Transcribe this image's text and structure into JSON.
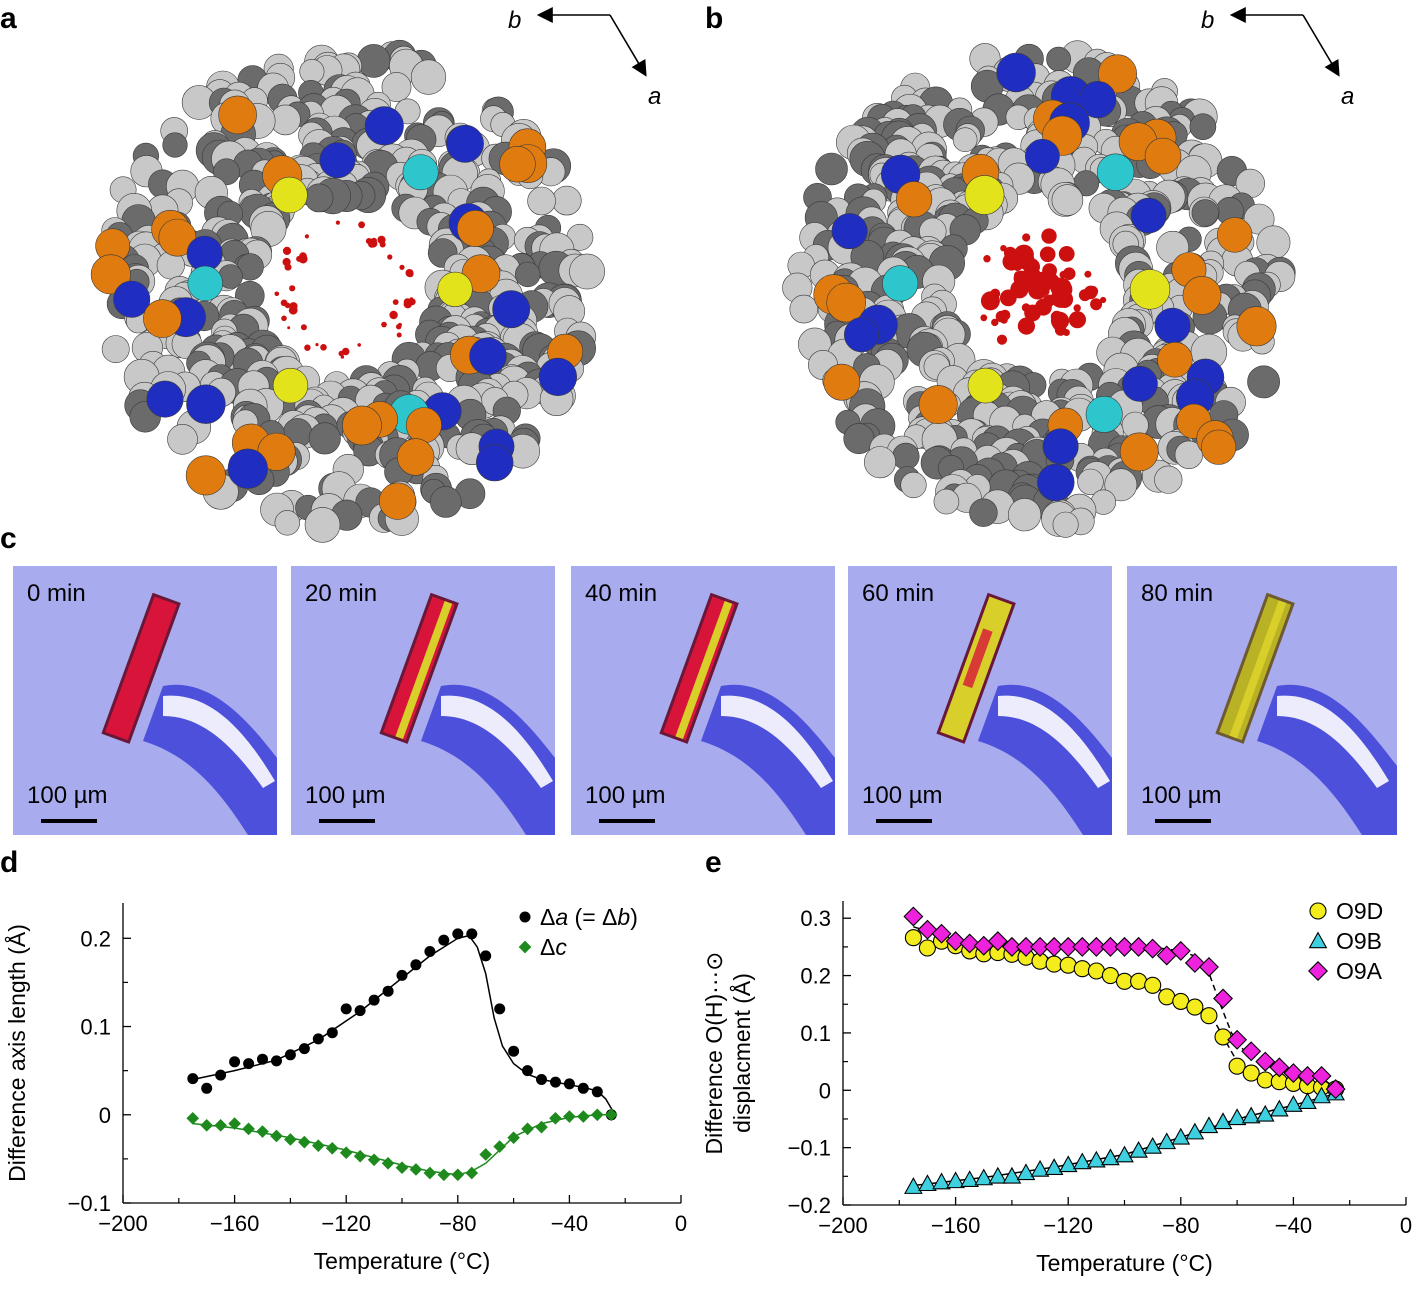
{
  "panels": {
    "a": {
      "label": "a",
      "axis_b": "b",
      "axis_a": "a"
    },
    "b": {
      "label": "b",
      "axis_b": "b",
      "axis_a": "a"
    },
    "c": {
      "label": "c"
    },
    "d": {
      "label": "d"
    },
    "e": {
      "label": "e"
    }
  },
  "photos": [
    {
      "time": "0 min",
      "scale": "100 µm",
      "state": "red"
    },
    {
      "time": "20 min",
      "scale": "100 µm",
      "state": "mixed"
    },
    {
      "time": "40 min",
      "scale": "100 µm",
      "state": "mixed"
    },
    {
      "time": "60 min",
      "scale": "100 µm",
      "state": "mostly-yellow"
    },
    {
      "time": "80 min",
      "scale": "100 µm",
      "state": "yellow"
    }
  ],
  "colors": {
    "atom_carbon": "#6b6b6b",
    "atom_hydrogen": "#c8c8c8",
    "atom_oxygen": "#e07b10",
    "atom_nitrogen": "#1f2ec0",
    "atom_sulfur": "#e3e31c",
    "atom_chlorine": "#2cc6cc",
    "density": "#cc1010",
    "photo_bg": "#a9abef",
    "series_a": "#000000",
    "series_c": "#1e8a1e",
    "o9d": "#f4ec1c",
    "o9b": "#3fd0e0",
    "o9a": "#ee22dd"
  },
  "chart_data": [
    {
      "id": "d",
      "type": "scatter",
      "xlabel": "Temperature (°C)",
      "ylabel": "Difference axis length (Å)",
      "xlim": [
        -200,
        0
      ],
      "ylim": [
        -0.1,
        0.24
      ],
      "xticks": [
        -200,
        -160,
        -120,
        -80,
        -40,
        0
      ],
      "xtick_labels": [
        "−200",
        "−160",
        "−120",
        "−80",
        "−40",
        "0"
      ],
      "yticks": [
        -0.1,
        0,
        0.1,
        0.2
      ],
      "ytick_labels": [
        "−0.1",
        "0",
        "0.1",
        "0.2"
      ],
      "legend_position": "top-right",
      "series": [
        {
          "name": "Δa (= Δb)",
          "legend_var": "a",
          "legend_eq": "(= Δ",
          "legend_var2": "b",
          "legend_close": ")",
          "marker": "circle",
          "color": "#000000",
          "x": [
            -175,
            -170,
            -165,
            -160,
            -155,
            -150,
            -145,
            -140,
            -135,
            -130,
            -125,
            -120,
            -115,
            -110,
            -105,
            -100,
            -95,
            -90,
            -85,
            -80,
            -75,
            -70,
            -65,
            -60,
            -55,
            -50,
            -45,
            -40,
            -35,
            -30,
            -25
          ],
          "y": [
            0.041,
            0.03,
            0.045,
            0.06,
            0.058,
            0.063,
            0.061,
            0.068,
            0.075,
            0.086,
            0.093,
            0.12,
            0.118,
            0.13,
            0.14,
            0.158,
            0.17,
            0.185,
            0.198,
            0.205,
            0.205,
            0.18,
            0.12,
            0.072,
            0.05,
            0.04,
            0.037,
            0.035,
            0.03,
            0.026,
            0.0
          ],
          "fit_x": [
            -175,
            -160,
            -145,
            -130,
            -115,
            -100,
            -90,
            -80,
            -76,
            -73,
            -70,
            -67,
            -64,
            -60,
            -55,
            -50,
            -45,
            -40,
            -35,
            -30,
            -27,
            -24
          ],
          "fit_y": [
            0.04,
            0.05,
            0.062,
            0.085,
            0.117,
            0.155,
            0.18,
            0.2,
            0.203,
            0.19,
            0.16,
            0.11,
            0.078,
            0.058,
            0.046,
            0.04,
            0.037,
            0.034,
            0.031,
            0.027,
            0.018,
            0.002
          ]
        },
        {
          "name": "Δc",
          "legend_var": "c",
          "marker": "diamond",
          "color": "#1e8a1e",
          "x": [
            -175,
            -170,
            -165,
            -160,
            -155,
            -150,
            -145,
            -140,
            -135,
            -130,
            -125,
            -120,
            -115,
            -110,
            -105,
            -100,
            -95,
            -90,
            -85,
            -80,
            -75,
            -70,
            -65,
            -60,
            -55,
            -50,
            -45,
            -40,
            -35,
            -30,
            -25
          ],
          "y": [
            -0.004,
            -0.012,
            -0.012,
            -0.01,
            -0.016,
            -0.019,
            -0.024,
            -0.028,
            -0.031,
            -0.035,
            -0.038,
            -0.043,
            -0.047,
            -0.051,
            -0.055,
            -0.06,
            -0.062,
            -0.066,
            -0.068,
            -0.068,
            -0.066,
            -0.045,
            -0.036,
            -0.026,
            -0.016,
            -0.014,
            -0.004,
            -0.002,
            -0.002,
            0.0,
            0.0
          ],
          "fit_x": [
            -175,
            -160,
            -140,
            -120,
            -100,
            -90,
            -80,
            -75,
            -70,
            -65,
            -60,
            -50,
            -40,
            -30,
            -24
          ],
          "fit_y": [
            -0.01,
            -0.015,
            -0.026,
            -0.04,
            -0.057,
            -0.064,
            -0.068,
            -0.064,
            -0.055,
            -0.04,
            -0.025,
            -0.01,
            -0.003,
            0.0,
            0.0
          ]
        }
      ]
    },
    {
      "id": "e",
      "type": "scatter",
      "xlabel": "Temperature (°C)",
      "ylabel_line1": "Difference O(H)···⊙",
      "ylabel_line2": "displacment (Å)",
      "xlim": [
        -200,
        0
      ],
      "ylim": [
        -0.2,
        0.33
      ],
      "xticks": [
        -200,
        -160,
        -120,
        -80,
        -40,
        0
      ],
      "xtick_labels": [
        "−200",
        "−160",
        "−120",
        "−80",
        "−40",
        "0"
      ],
      "yticks": [
        -0.2,
        -0.1,
        0,
        0.1,
        0.2,
        0.3
      ],
      "ytick_labels": [
        "−0.2",
        "−0.1",
        "0",
        "0.1",
        "0.2",
        "0.3"
      ],
      "legend_position": "top-right",
      "series": [
        {
          "name": "O9D",
          "marker": "circle",
          "color": "#f4ec1c",
          "x": [
            -175,
            -170,
            -165,
            -160,
            -155,
            -150,
            -145,
            -140,
            -135,
            -130,
            -125,
            -120,
            -115,
            -110,
            -105,
            -100,
            -95,
            -90,
            -85,
            -80,
            -75,
            -70,
            -65,
            -60,
            -55,
            -50,
            -45,
            -40,
            -35,
            -30,
            -25
          ],
          "y": [
            0.266,
            0.248,
            0.26,
            0.252,
            0.243,
            0.238,
            0.24,
            0.237,
            0.232,
            0.225,
            0.22,
            0.218,
            0.212,
            0.208,
            0.2,
            0.19,
            0.19,
            0.183,
            0.163,
            0.155,
            0.145,
            0.13,
            0.093,
            0.042,
            0.03,
            0.018,
            0.015,
            0.012,
            0.008,
            0.005,
            0.002
          ],
          "fit_x": [
            -175,
            -160,
            -140,
            -120,
            -100,
            -90,
            -80,
            -72,
            -68,
            -64,
            -60,
            -55,
            -50,
            -40,
            -30,
            -25
          ],
          "fit_y": [
            0.26,
            0.254,
            0.243,
            0.225,
            0.195,
            0.18,
            0.16,
            0.138,
            0.12,
            0.085,
            0.05,
            0.03,
            0.018,
            0.01,
            0.004,
            0.002
          ]
        },
        {
          "name": "O9B",
          "marker": "triangle",
          "color": "#3fd0e0",
          "x": [
            -175,
            -170,
            -165,
            -160,
            -155,
            -150,
            -145,
            -140,
            -135,
            -130,
            -125,
            -120,
            -115,
            -110,
            -105,
            -100,
            -95,
            -90,
            -85,
            -80,
            -75,
            -70,
            -65,
            -60,
            -55,
            -50,
            -45,
            -40,
            -35,
            -30,
            -25
          ],
          "y": [
            -0.168,
            -0.163,
            -0.16,
            -0.158,
            -0.156,
            -0.153,
            -0.15,
            -0.15,
            -0.144,
            -0.138,
            -0.135,
            -0.13,
            -0.125,
            -0.122,
            -0.118,
            -0.113,
            -0.105,
            -0.098,
            -0.09,
            -0.082,
            -0.073,
            -0.062,
            -0.055,
            -0.048,
            -0.045,
            -0.042,
            -0.033,
            -0.025,
            -0.02,
            -0.01,
            -0.005
          ],
          "fit_x": [
            -175,
            -150,
            -125,
            -100,
            -80,
            -60,
            -40,
            -25
          ],
          "fit_y": [
            -0.166,
            -0.152,
            -0.134,
            -0.112,
            -0.082,
            -0.05,
            -0.026,
            -0.006
          ]
        },
        {
          "name": "O9A",
          "marker": "diamond",
          "color": "#ee22dd",
          "x": [
            -175,
            -170,
            -165,
            -160,
            -155,
            -150,
            -145,
            -140,
            -135,
            -130,
            -125,
            -120,
            -115,
            -110,
            -105,
            -100,
            -95,
            -90,
            -85,
            -80,
            -75,
            -70,
            -65,
            -60,
            -55,
            -50,
            -45,
            -40,
            -35,
            -30,
            -25
          ],
          "y": [
            0.303,
            0.28,
            0.273,
            0.26,
            0.256,
            0.252,
            0.26,
            0.25,
            0.25,
            0.25,
            0.25,
            0.25,
            0.25,
            0.25,
            0.25,
            0.25,
            0.25,
            0.247,
            0.235,
            0.243,
            0.222,
            0.215,
            0.16,
            0.088,
            0.068,
            0.05,
            0.04,
            0.03,
            0.025,
            0.025,
            0.002
          ],
          "fit_x": [
            -175,
            -160,
            -140,
            -120,
            -100,
            -88,
            -80,
            -74,
            -70,
            -66,
            -62,
            -58,
            -54,
            -50,
            -40,
            -30,
            -25
          ],
          "fit_y": [
            0.285,
            0.262,
            0.252,
            0.25,
            0.25,
            0.248,
            0.243,
            0.232,
            0.205,
            0.15,
            0.1,
            0.072,
            0.058,
            0.048,
            0.03,
            0.02,
            0.005
          ]
        }
      ]
    }
  ]
}
